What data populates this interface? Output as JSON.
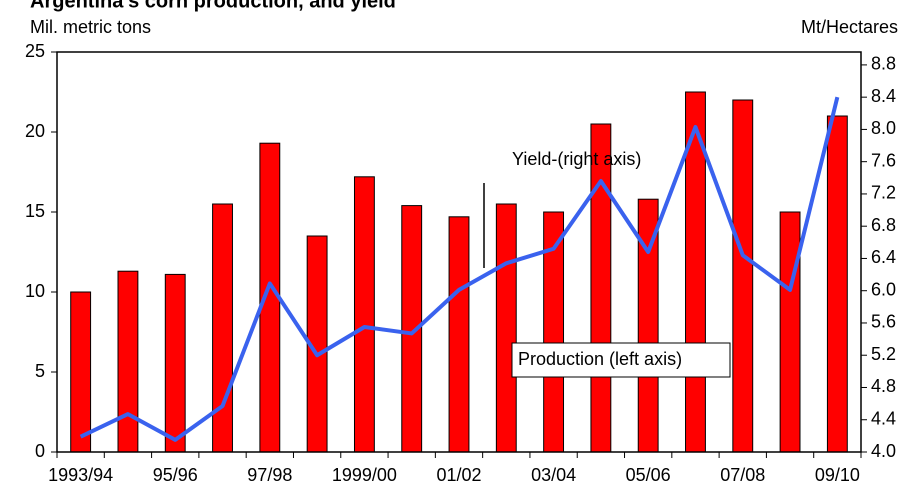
{
  "chart_data": {
    "type": "bar_line",
    "title": "Argentina's corn production, and yield",
    "y_label": "Mil. metric tons",
    "y2_label": "Mt/Hectares",
    "categories": [
      "1993/94",
      null,
      "95/96",
      null,
      "97/98",
      null,
      "1999/00",
      null,
      "01/02",
      null,
      "03/04",
      null,
      "05/06",
      null,
      "07/08",
      null,
      "09/10"
    ],
    "series": [
      {
        "name": "Production (left axis)",
        "type": "bar",
        "color": "#ff0000",
        "values": [
          10.0,
          11.3,
          11.1,
          15.5,
          19.3,
          13.5,
          17.2,
          15.4,
          14.7,
          15.5,
          15.0,
          20.5,
          15.8,
          22.5,
          22.0,
          15.0,
          21.0
        ]
      },
      {
        "name": "Yield-(right axis)",
        "type": "line",
        "axis": "y2",
        "color": "#3a62ee",
        "values": [
          4.19,
          4.47,
          4.15,
          4.57,
          6.09,
          5.2,
          5.55,
          5.47,
          6.01,
          6.34,
          6.52,
          7.36,
          6.48,
          8.03,
          6.44,
          6.01,
          8.4
        ]
      }
    ],
    "ylim": [
      0,
      25
    ],
    "yticks": [
      0,
      5,
      10,
      15,
      20,
      25
    ],
    "y2lim": [
      4,
      8.96
    ],
    "y2ticks": [
      {
        "value": 4,
        "label": "4.0"
      },
      4.4,
      4.8,
      5.2,
      5.6,
      {
        "value": 6,
        "label": "6.0"
      },
      6.4,
      6.8,
      7.2,
      7.6,
      {
        "value": 8,
        "label": "8.0"
      },
      8.4,
      8.8
    ]
  }
}
